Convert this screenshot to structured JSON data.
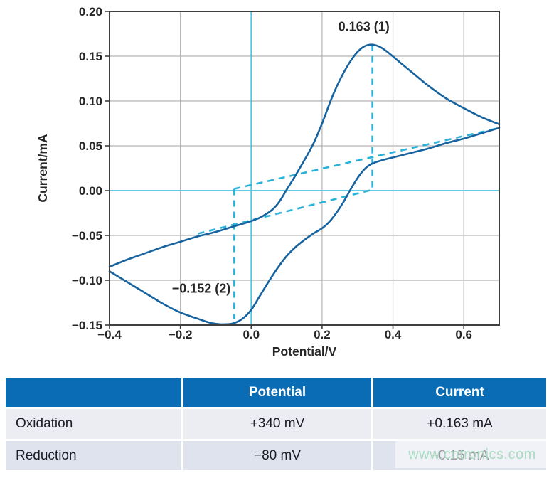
{
  "theme": {
    "curve": "#16639f",
    "dash": "#29b2da",
    "zero_axis": "#4cc4e2",
    "grid": "#b4b4b4",
    "border": "#3f3f3f",
    "tick_text": "#262626",
    "header_bg": "#0a6cb5",
    "header_text": "#ffffff",
    "row1_bg": "#ebedf2",
    "row2_bg": "#dfe3ed",
    "body_text": "#1c1c26",
    "watermark": "#a9dcc2"
  },
  "chart_data": {
    "type": "line",
    "title": "",
    "xlabel": "Potential/V",
    "ylabel": "Current/mA",
    "xlim": [
      -0.4,
      0.7
    ],
    "ylim": [
      -0.15,
      0.2
    ],
    "x_tick_values": [
      -0.4,
      -0.2,
      0.0,
      0.2,
      0.4,
      0.6
    ],
    "x_tick_labels": [
      "−0.4",
      "−0.2",
      "0.0",
      "0.2",
      "0.4",
      "0.6"
    ],
    "y_tick_values": [
      0.2,
      0.15,
      0.1,
      0.05,
      0.0,
      -0.05,
      -0.1,
      -0.15
    ],
    "y_tick_labels": [
      "0.20",
      "0.15",
      "0.10",
      "0.05",
      "0.00",
      "−0.05",
      "−0.10",
      "−0.15"
    ],
    "grid_x": [
      -0.2,
      0.2,
      0.4,
      0.6
    ],
    "grid_y": [
      0.15,
      0.1,
      0.05,
      -0.05,
      -0.1
    ],
    "zero_axes": true,
    "legend": "none",
    "series": [
      {
        "name": "cv-forward-scan",
        "points": [
          [
            -0.4,
            -0.085
          ],
          [
            -0.35,
            -0.077
          ],
          [
            -0.3,
            -0.07
          ],
          [
            -0.25,
            -0.063
          ],
          [
            -0.2,
            -0.057
          ],
          [
            -0.15,
            -0.051
          ],
          [
            -0.1,
            -0.046
          ],
          [
            -0.05,
            -0.04
          ],
          [
            0,
            -0.034
          ],
          [
            0.03,
            -0.029
          ],
          [
            0.06,
            -0.021
          ],
          [
            0.08,
            -0.012
          ],
          [
            0.1,
            0.001
          ],
          [
            0.125,
            0.017
          ],
          [
            0.15,
            0.034
          ],
          [
            0.175,
            0.052
          ],
          [
            0.2,
            0.075
          ],
          [
            0.23,
            0.106
          ],
          [
            0.26,
            0.131
          ],
          [
            0.29,
            0.15
          ],
          [
            0.315,
            0.16
          ],
          [
            0.34,
            0.163
          ],
          [
            0.365,
            0.16
          ],
          [
            0.39,
            0.153
          ],
          [
            0.42,
            0.143
          ],
          [
            0.46,
            0.13
          ],
          [
            0.5,
            0.117
          ],
          [
            0.55,
            0.103
          ],
          [
            0.6,
            0.092
          ],
          [
            0.65,
            0.082
          ],
          [
            0.7,
            0.074
          ]
        ]
      },
      {
        "name": "cv-reverse-scan",
        "points": [
          [
            0.7,
            0.07
          ],
          [
            0.65,
            0.064
          ],
          [
            0.6,
            0.058
          ],
          [
            0.55,
            0.053
          ],
          [
            0.5,
            0.047
          ],
          [
            0.45,
            0.042
          ],
          [
            0.4,
            0.037
          ],
          [
            0.37,
            0.034
          ],
          [
            0.34,
            0.03
          ],
          [
            0.32,
            0.024
          ],
          [
            0.3,
            0.014
          ],
          [
            0.28,
            0.001
          ],
          [
            0.26,
            -0.013
          ],
          [
            0.24,
            -0.025
          ],
          [
            0.22,
            -0.035
          ],
          [
            0.2,
            -0.042
          ],
          [
            0.175,
            -0.048
          ],
          [
            0.15,
            -0.055
          ],
          [
            0.125,
            -0.063
          ],
          [
            0.1,
            -0.073
          ],
          [
            0.075,
            -0.086
          ],
          [
            0.05,
            -0.101
          ],
          [
            0.025,
            -0.117
          ],
          [
            0,
            -0.133
          ],
          [
            -0.025,
            -0.143
          ],
          [
            -0.05,
            -0.148
          ],
          [
            -0.07,
            -0.149
          ],
          [
            -0.09,
            -0.149
          ],
          [
            -0.12,
            -0.147
          ],
          [
            -0.15,
            -0.143
          ],
          [
            -0.2,
            -0.136
          ],
          [
            -0.25,
            -0.126
          ],
          [
            -0.3,
            -0.114
          ],
          [
            -0.35,
            -0.102
          ],
          [
            -0.4,
            -0.09
          ]
        ]
      }
    ],
    "baselines": [
      {
        "name": "oxidation-baseline-dashed",
        "points": [
          [
            -0.15,
            -0.048
          ],
          [
            0.342,
            0.001
          ]
        ]
      },
      {
        "name": "reduction-baseline-dashed",
        "points": [
          [
            -0.048,
            0.002
          ],
          [
            0.7,
            0.07
          ]
        ]
      },
      {
        "name": "oxidation-peak-drop-dashed",
        "points": [
          [
            0.342,
            0.163
          ],
          [
            0.342,
            0.001
          ]
        ]
      },
      {
        "name": "reduction-peak-drop-dashed",
        "points": [
          [
            -0.048,
            0.002
          ],
          [
            -0.048,
            -0.143
          ]
        ]
      }
    ],
    "annotations": [
      {
        "text": "0.163 (1)",
        "x": 0.318,
        "y": 0.178
      },
      {
        "text": "−0.152 (2)",
        "x": -0.141,
        "y": -0.114
      }
    ]
  },
  "table": {
    "headers": [
      "",
      "Potential",
      "Current"
    ],
    "rows": [
      {
        "label": "Oxidation",
        "potential": "+340 mV",
        "current": "+0.163 mA"
      },
      {
        "label": "Reduction",
        "potential": "−80 mV",
        "current": "−0.15 mA"
      }
    ]
  },
  "watermark": {
    "text": "www.cntronics.com"
  }
}
